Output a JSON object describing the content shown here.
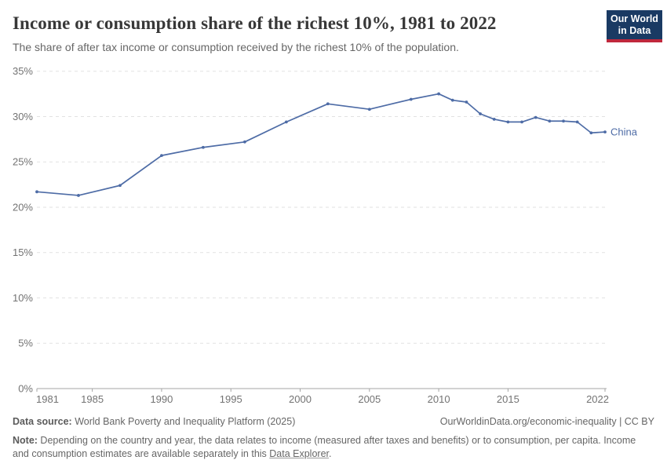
{
  "header": {
    "title": "Income or consumption share of the richest 10%, 1981 to 2022",
    "subtitle": "The share of after tax income or consumption received by the richest 10% of the population."
  },
  "logo": {
    "line1": "Our World",
    "line2": "in Data"
  },
  "chart_data": {
    "type": "line",
    "title": "Income or consumption share of the richest 10%, 1981 to 2022",
    "xlabel": "",
    "ylabel": "",
    "xlim": [
      1981,
      2022
    ],
    "ylim": [
      0,
      35
    ],
    "x_ticks": [
      1981,
      1985,
      1990,
      1995,
      2000,
      2005,
      2010,
      2015,
      2022
    ],
    "y_ticks": [
      0,
      5,
      10,
      15,
      20,
      25,
      30,
      35
    ],
    "y_tick_suffix": "%",
    "grid": "dashed horizontal gridlines, no vertical gridlines, solid baseline at 0%",
    "legend_position": "end-of-line label",
    "series": [
      {
        "name": "China",
        "x": [
          1981,
          1984,
          1987,
          1990,
          1993,
          1996,
          1999,
          2002,
          2005,
          2008,
          2010,
          2011,
          2012,
          2013,
          2014,
          2015,
          2016,
          2017,
          2018,
          2019,
          2020,
          2021,
          2022
        ],
        "values": [
          21.7,
          21.3,
          22.4,
          25.7,
          26.6,
          27.2,
          29.4,
          31.4,
          30.8,
          31.9,
          32.5,
          31.8,
          31.6,
          30.3,
          29.7,
          29.4,
          29.4,
          29.9,
          29.5,
          29.5,
          29.4,
          28.2,
          28.3
        ]
      }
    ],
    "line_color": "#4e6ca6",
    "gridline_color": "#e2e2e2",
    "axis_color": "#a5a5a5",
    "tick_label_color": "#737373"
  },
  "footer": {
    "datasource_label": "Data source:",
    "datasource_text": " World Bank Poverty and Inequality Platform (2025)",
    "credit": "OurWorldinData.org/economic-inequality | CC BY",
    "note_label": "Note:",
    "note_text": " Depending on the country and year, the data relates to income (measured after taxes and benefits) or to consumption, per capita. Income and consumption estimates are available separately in this ",
    "note_link": "Data Explorer",
    "note_suffix": "."
  },
  "colors": {
    "logo_navy": "#1a3a63",
    "logo_red": "#c0283c",
    "title_text": "#383838",
    "muted_text": "#666666",
    "series_blue": "#4e6ca6"
  }
}
